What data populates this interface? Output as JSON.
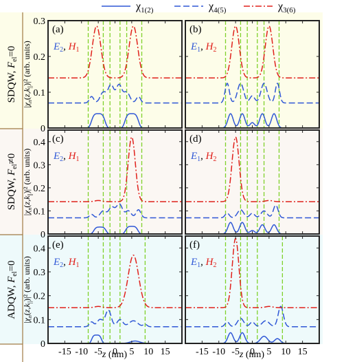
{
  "legend": [
    {
      "label": "χ1(2)",
      "color": "#2f57d6",
      "dash": "solid"
    },
    {
      "label": "χ4(5)",
      "color": "#2f57d6",
      "dash": "dashed"
    },
    {
      "label": "χ3(6)",
      "color": "#e0201b",
      "dash": "dashdot"
    }
  ],
  "row_labels": [
    "SDQW, Fel=0",
    "SDQW, Fel≠0",
    "ADQW, Fel=0"
  ],
  "y_axis_label": "|χn(z,k||)|² (arb. units)",
  "x_axis_label": "z (nm)",
  "x_ticks": [
    -15,
    -10,
    -5,
    0,
    5,
    10,
    15
  ],
  "colors": {
    "row_bg": [
      "#fdfde9",
      "#fbf7f3",
      "#eefafb"
    ],
    "separator": "#a07a43",
    "blue": "#2f57d6",
    "red": "#e0201b",
    "green_dashed": "#7fd12a"
  },
  "chart_data": [
    {
      "panel": "(a)",
      "type": "line",
      "state_label": [
        "E2",
        "H1"
      ],
      "xlim": [
        -20,
        20
      ],
      "ylim": [
        0,
        0.3
      ],
      "yticks": [
        0,
        0.1,
        0.2,
        0.3
      ],
      "vlines": [
        -8,
        -3.5,
        -1.5,
        1.5,
        3.5,
        8
      ],
      "series": [
        {
          "id": "chi12",
          "offset": 0.0,
          "comps": [
            [
              -5,
              0.04,
              2.2,
              4
            ],
            [
              5,
              0.04,
              2.2,
              4
            ]
          ]
        },
        {
          "id": "chi45",
          "offset": 0.07,
          "comps": [
            [
              -7,
              0.018,
              0.9,
              2
            ],
            [
              -3.5,
              0.03,
              1.3,
              2
            ],
            [
              -1.2,
              0.05,
              1.2,
              2
            ],
            [
              1.2,
              0.05,
              1.2,
              2
            ],
            [
              3.5,
              0.03,
              1.3,
              2
            ],
            [
              7,
              0.018,
              0.9,
              2
            ]
          ]
        },
        {
          "id": "chi36",
          "offset": 0.14,
          "comps": [
            [
              -5.5,
              0.145,
              1.8,
              2
            ],
            [
              5.5,
              0.145,
              1.8,
              2
            ]
          ]
        }
      ]
    },
    {
      "panel": "(b)",
      "type": "line",
      "state_label": [
        "E1",
        "H2"
      ],
      "xlim": [
        -20,
        20
      ],
      "ylim": [
        0,
        0.3
      ],
      "yticks": [
        0,
        0.1,
        0.2,
        0.3
      ],
      "vlines": [
        -8,
        -3.5,
        -1.5,
        1.5,
        3.5,
        8
      ],
      "series": [
        {
          "id": "chi12",
          "offset": 0.0,
          "comps": [
            [
              -6.5,
              0.04,
              1.1,
              2
            ],
            [
              -3,
              0.04,
              1.1,
              2
            ],
            [
              3,
              0.04,
              1.1,
              2
            ],
            [
              6.5,
              0.04,
              1.1,
              2
            ],
            [
              0,
              0.015,
              1.0,
              2
            ]
          ]
        },
        {
          "id": "chi45",
          "offset": 0.07,
          "comps": [
            [
              -7.5,
              0.055,
              0.9,
              2
            ],
            [
              -3.5,
              0.055,
              1.3,
              2
            ],
            [
              0,
              0.02,
              1.0,
              2
            ],
            [
              3.5,
              0.055,
              1.3,
              2
            ],
            [
              7.5,
              0.055,
              0.9,
              2
            ]
          ]
        },
        {
          "id": "chi36",
          "offset": 0.14,
          "comps": [
            [
              -5,
              0.145,
              1.6,
              2
            ],
            [
              5,
              0.145,
              1.6,
              2
            ]
          ]
        }
      ]
    },
    {
      "panel": "(c)",
      "type": "line",
      "state_label": [
        "E2",
        "H1"
      ],
      "xlim": [
        -20,
        20
      ],
      "ylim": [
        0,
        0.45
      ],
      "yticks": [
        0,
        0.1,
        0.2,
        0.3,
        0.4
      ],
      "vlines": [
        -8,
        -3.5,
        -1.5,
        1.5,
        3.5,
        8
      ],
      "series": [
        {
          "id": "chi12",
          "offset": 0.0,
          "comps": [
            [
              -4.5,
              0.03,
              2.0,
              4
            ],
            [
              5,
              0.033,
              2.0,
              4
            ]
          ]
        },
        {
          "id": "chi45",
          "offset": 0.07,
          "comps": [
            [
              -7,
              0.015,
              0.9,
              2
            ],
            [
              -3.5,
              0.03,
              1.3,
              2
            ],
            [
              -1.0,
              0.045,
              1.2,
              2
            ],
            [
              1.3,
              0.06,
              1.3,
              2
            ],
            [
              4,
              0.03,
              1.2,
              2
            ],
            [
              7,
              0.035,
              1.0,
              2
            ]
          ]
        },
        {
          "id": "chi36",
          "offset": 0.14,
          "comps": [
            [
              -5,
              0.005,
              1.5,
              2
            ],
            [
              5,
              0.28,
              1.5,
              2
            ]
          ]
        }
      ]
    },
    {
      "panel": "(d)",
      "type": "line",
      "state_label": [
        "E1",
        "H2"
      ],
      "xlim": [
        -20,
        20
      ],
      "ylim": [
        0,
        0.45
      ],
      "yticks": [
        0,
        0.1,
        0.2,
        0.3,
        0.4
      ],
      "vlines": [
        -8,
        -3.5,
        -1.5,
        1.5,
        3.5,
        8
      ],
      "series": [
        {
          "id": "chi12",
          "offset": 0.0,
          "comps": [
            [
              -6.5,
              0.05,
              1.1,
              2
            ],
            [
              -3,
              0.05,
              1.1,
              2
            ],
            [
              3,
              0.04,
              1.1,
              2
            ],
            [
              6.5,
              0.04,
              1.1,
              2
            ],
            [
              0,
              0.015,
              1.0,
              2
            ]
          ]
        },
        {
          "id": "chi45",
          "offset": 0.07,
          "comps": [
            [
              -7.5,
              0.02,
              0.9,
              2
            ],
            [
              -3.5,
              0.035,
              1.3,
              2
            ],
            [
              0,
              0.02,
              1.0,
              2
            ],
            [
              3.5,
              0.03,
              1.3,
              2
            ],
            [
              7,
              0.055,
              1.0,
              2
            ]
          ]
        },
        {
          "id": "chi36",
          "offset": 0.14,
          "comps": [
            [
              -5,
              0.28,
              1.5,
              2
            ],
            [
              5,
              0.005,
              1.5,
              2
            ]
          ]
        }
      ]
    },
    {
      "panel": "(e)",
      "type": "line",
      "state_label": [
        "E2",
        "H1"
      ],
      "xlim": [
        -20,
        20
      ],
      "ylim": [
        0,
        0.45
      ],
      "yticks": [
        0,
        0.1,
        0.2,
        0.3,
        0.4
      ],
      "vlines": [
        -8,
        -3.5,
        -1.5,
        1.5,
        9
      ],
      "series": [
        {
          "id": "chi12",
          "offset": 0.0,
          "comps": [
            [
              -5.5,
              0.035,
              1.6,
              4
            ],
            [
              6,
              0.01,
              2.0,
              2
            ]
          ]
        },
        {
          "id": "chi45",
          "offset": 0.07,
          "comps": [
            [
              -7,
              0.02,
              0.9,
              2
            ],
            [
              -4.5,
              0.03,
              1.2,
              2
            ],
            [
              -2,
              0.07,
              1.2,
              2
            ],
            [
              1.5,
              0.03,
              1.2,
              2
            ],
            [
              5.5,
              0.025,
              1.8,
              2
            ],
            [
              9,
              0.01,
              0.8,
              2
            ]
          ]
        },
        {
          "id": "chi36",
          "offset": 0.15,
          "comps": [
            [
              -5,
              0.005,
              1.5,
              2
            ],
            [
              5.5,
              0.22,
              2.2,
              2
            ]
          ]
        }
      ]
    },
    {
      "panel": "(f)",
      "type": "line",
      "state_label": [
        "E1",
        "H2"
      ],
      "xlim": [
        -20,
        20
      ],
      "ylim": [
        0,
        0.45
      ],
      "yticks": [
        0,
        0.1,
        0.2,
        0.3,
        0.4
      ],
      "vlines": [
        -8,
        -3.5,
        -1.5,
        1.5,
        9
      ],
      "series": [
        {
          "id": "chi12",
          "offset": 0.0,
          "comps": [
            [
              -6.5,
              0.045,
              1.1,
              2
            ],
            [
              -3,
              0.045,
              1.1,
              2
            ],
            [
              3.5,
              0.03,
              1.5,
              2
            ],
            [
              7.5,
              0.02,
              1.2,
              2
            ]
          ]
        },
        {
          "id": "chi45",
          "offset": 0.07,
          "comps": [
            [
              -7.5,
              0.02,
              0.9,
              2
            ],
            [
              -3.5,
              0.035,
              1.3,
              2
            ],
            [
              0,
              0.02,
              1.0,
              2
            ],
            [
              4,
              0.025,
              1.5,
              2
            ],
            [
              8.5,
              0.085,
              1.1,
              2
            ]
          ]
        },
        {
          "id": "chi36",
          "offset": 0.15,
          "comps": [
            [
              -5,
              0.29,
              1.4,
              2
            ],
            [
              5,
              0.005,
              1.5,
              2
            ]
          ]
        }
      ]
    }
  ]
}
